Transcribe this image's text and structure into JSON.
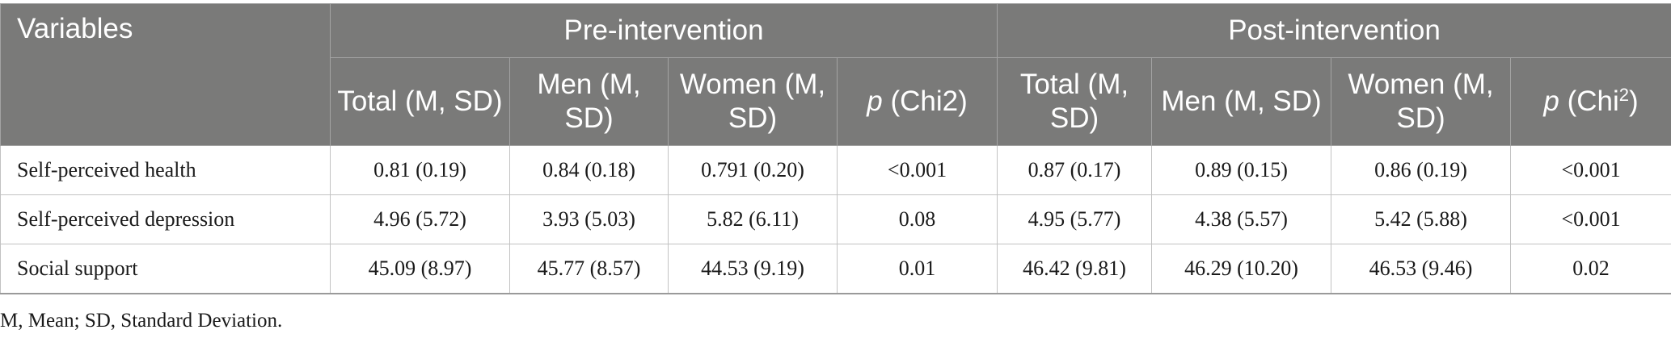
{
  "table": {
    "variables_header": "Variables",
    "groups": [
      "Pre-intervention",
      "Post-intervention"
    ],
    "sub_headers": [
      {
        "pre": "",
        "main": "Total (M, SD)"
      },
      {
        "pre": "",
        "main": "Men (M, SD)"
      },
      {
        "pre": "",
        "main": "Women (M, SD)"
      },
      {
        "pre": "p",
        "main": " (Chi2)",
        "sup": ""
      },
      {
        "pre": "",
        "main": "Total (M, SD)"
      },
      {
        "pre": "",
        "main": "Men (M, SD)"
      },
      {
        "pre": "",
        "main": "Women (M, SD)"
      },
      {
        "pre": "p",
        "main": " (Chi",
        "sup": "2",
        "post": ")"
      }
    ],
    "rows": [
      {
        "label": "Self-perceived health",
        "cells": [
          "0.81 (0.19)",
          "0.84 (0.18)",
          "0.791 (0.20)",
          "<0.001",
          "0.87 (0.17)",
          "0.89 (0.15)",
          "0.86 (0.19)",
          "<0.001"
        ]
      },
      {
        "label": "Self-perceived depression",
        "cells": [
          "4.96 (5.72)",
          "3.93 (5.03)",
          "5.82 (6.11)",
          "0.08",
          "4.95 (5.77)",
          "4.38 (5.57)",
          "5.42 (5.88)",
          "<0.001"
        ]
      },
      {
        "label": "Social support",
        "cells": [
          "45.09 (8.97)",
          "45.77 (8.57)",
          "44.53 (9.19)",
          "0.01",
          "46.42 (9.81)",
          "46.29 (10.20)",
          "46.53 (9.46)",
          "0.02"
        ]
      }
    ]
  },
  "footnote": "M, Mean; SD, Standard Deviation."
}
